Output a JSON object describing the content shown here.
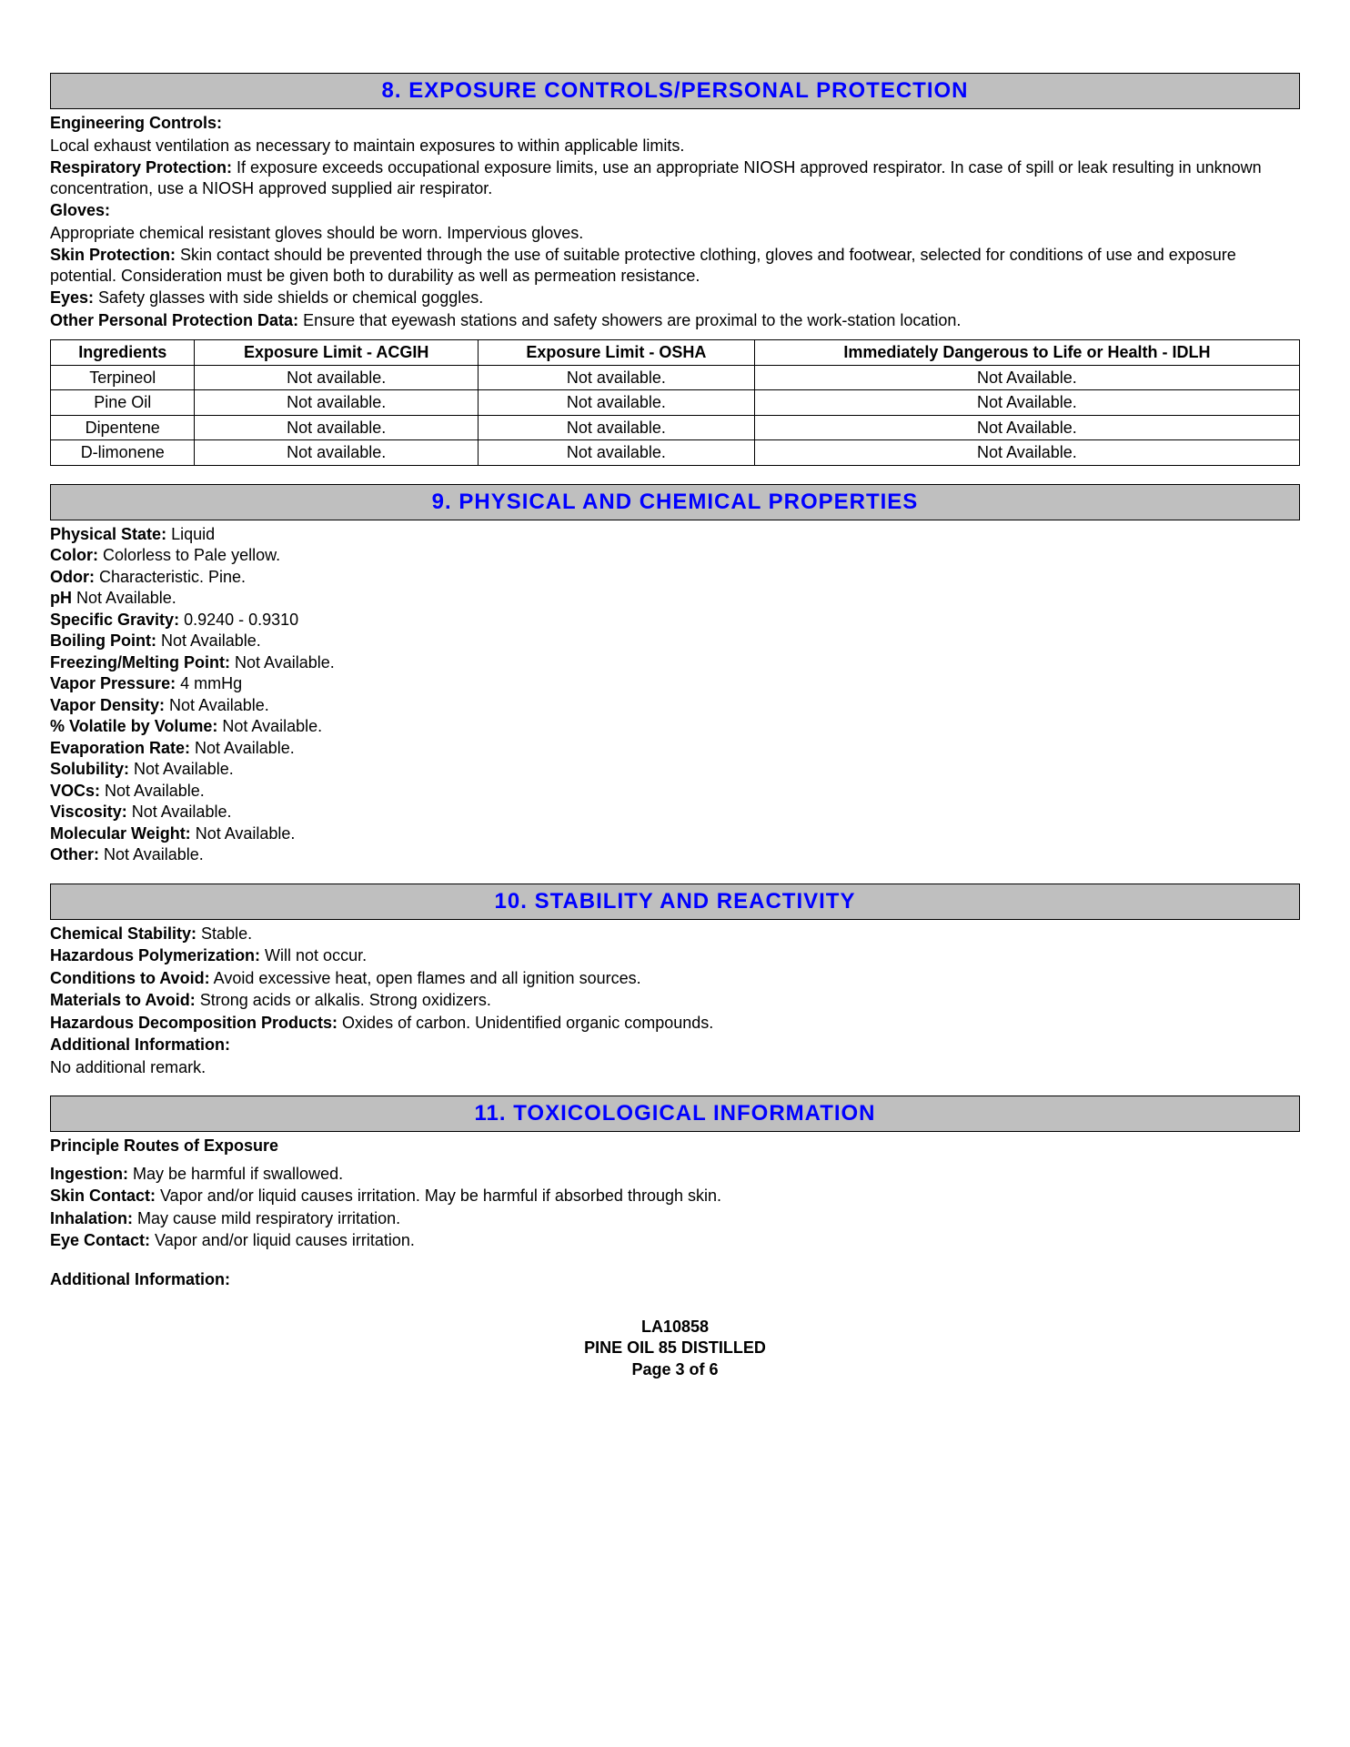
{
  "section8": {
    "title": "8. EXPOSURE CONTROLS/PERSONAL PROTECTION",
    "engineering_controls_label": "Engineering Controls:",
    "engineering_controls_text": "Local exhaust ventilation as necessary to maintain exposures to within applicable limits.",
    "respiratory_label": "Respiratory Protection:",
    "respiratory_text": " If exposure exceeds occupational exposure limits, use an appropriate NIOSH approved respirator. In case of spill or leak resulting in unknown concentration, use a NIOSH approved supplied air respirator.",
    "gloves_label": "Gloves:",
    "gloves_text": "Appropriate chemical resistant gloves should be worn. Impervious gloves.",
    "skin_label": "Skin Protection:",
    "skin_text": " Skin contact should be prevented through the use of suitable protective clothing, gloves and footwear, selected for conditions of use and exposure potential. Consideration must be given both to durability as well as permeation resistance.",
    "eyes_label": "Eyes:",
    "eyes_text": " Safety glasses with side shields or chemical goggles.",
    "other_label": "Other Personal Protection Data:",
    "other_text": " Ensure that eyewash stations and safety showers are proximal to the work-station location.",
    "table": {
      "columns": [
        "Ingredients",
        "Exposure Limit - ACGIH",
        "Exposure Limit - OSHA",
        "Immediately Dangerous to Life or Health - IDLH"
      ],
      "rows": [
        [
          "Terpineol",
          "Not available.",
          "Not available.",
          "Not Available."
        ],
        [
          "Pine Oil",
          "Not available.",
          "Not available.",
          "Not Available."
        ],
        [
          "Dipentene",
          "Not available.",
          "Not available.",
          "Not Available."
        ],
        [
          "D-limonene",
          "Not available.",
          "Not available.",
          "Not Available."
        ]
      ],
      "col_widths": [
        "250px",
        "200px",
        "200px",
        "210px"
      ]
    }
  },
  "section9": {
    "title": "9. PHYSICAL AND CHEMICAL PROPERTIES",
    "props": [
      {
        "label": "Physical State:",
        "value": " Liquid"
      },
      {
        "label": "Color:",
        "value": " Colorless to Pale yellow."
      },
      {
        "label": "Odor:",
        "value": " Characteristic. Pine."
      },
      {
        "label": "pH",
        "value": " Not Available."
      },
      {
        "label": "Specific Gravity:",
        "value": " 0.9240 - 0.9310"
      },
      {
        "label": "Boiling Point:",
        "value": " Not Available."
      },
      {
        "label": "Freezing/Melting Point:",
        "value": " Not Available."
      },
      {
        "label": "Vapor Pressure:",
        "value": " 4 mmHg"
      },
      {
        "label": "Vapor Density:",
        "value": " Not Available."
      },
      {
        "label": "% Volatile by Volume:",
        "value": " Not Available."
      },
      {
        "label": "Evaporation Rate:",
        "value": " Not Available."
      },
      {
        "label": "Solubility:",
        "value": " Not Available."
      },
      {
        "label": "VOCs:",
        "value": " Not Available."
      },
      {
        "label": "Viscosity:",
        "value": " Not Available."
      },
      {
        "label": "Molecular Weight:",
        "value": " Not Available."
      },
      {
        "label": "Other:",
        "value": " Not Available."
      }
    ]
  },
  "section10": {
    "title": "10. STABILITY AND REACTIVITY",
    "chemical_stability_label": "Chemical Stability:",
    "chemical_stability_text": " Stable.",
    "haz_poly_label": "Hazardous Polymerization:",
    "haz_poly_text": " Will not occur.",
    "conditions_label": "Conditions to Avoid:",
    "conditions_text": " Avoid excessive heat, open flames and all ignition sources.",
    "materials_label": "Materials to Avoid:",
    "materials_text": " Strong acids or alkalis. Strong oxidizers.",
    "decomp_label": "Hazardous Decomposition Products:",
    "decomp_text": " Oxides of carbon. Unidentified organic compounds.",
    "addl_label": "Additional Information:",
    "addl_text": "No additional remark."
  },
  "section11": {
    "title": "11. TOXICOLOGICAL INFORMATION",
    "routes_label": "Principle Routes of  Exposure",
    "ingestion_label": "Ingestion:",
    "ingestion_text": " May be harmful if swallowed.",
    "skin_label": "Skin Contact:",
    "skin_text": " Vapor and/or liquid causes irritation. May be harmful if absorbed through skin.",
    "inhalation_label": "Inhalation:",
    "inhalation_text": " May cause mild respiratory irritation.",
    "eye_label": "Eye Contact:",
    "eye_text": " Vapor and/or liquid causes irritation.",
    "addl_label": "Additional Information:"
  },
  "footer": {
    "code": "LA10858",
    "product": "PINE OIL 85 DISTILLED",
    "page": "Page 3 of 6"
  }
}
